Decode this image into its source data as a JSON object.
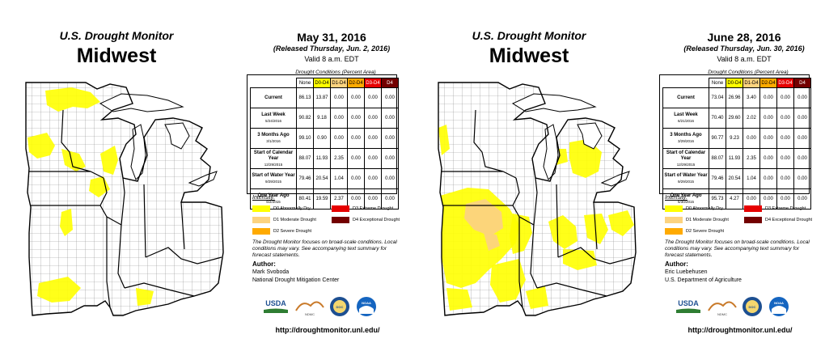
{
  "colors": {
    "d0": "#ffff00",
    "d1": "#fcd37f",
    "d2": "#ffaa00",
    "d3": "#e60000",
    "d4": "#730000",
    "county_line": "#8c8c8c",
    "state_line": "#000000"
  },
  "panels": [
    {
      "header": "U.S. Drought Monitor",
      "region": "Midwest",
      "date": "May 31, 2016",
      "released": "(Released Thursday, Jun. 2, 2016)",
      "valid": "Valid 8 a.m. EDT",
      "conditions_title": "Drought Conditions (Percent Area)",
      "columns": [
        "None",
        "D0-D4",
        "D1-D4",
        "D2-D4",
        "D3-D4",
        "D4"
      ],
      "rows": [
        {
          "label": "Current",
          "sub": "",
          "values": [
            "86.13",
            "13.87",
            "0.00",
            "0.00",
            "0.00",
            "0.00"
          ]
        },
        {
          "label": "Last Week",
          "sub": "5/24/2016",
          "values": [
            "90.82",
            "9.18",
            "0.00",
            "0.00",
            "0.00",
            "0.00"
          ]
        },
        {
          "label": "3 Months Ago",
          "sub": "3/1/2016",
          "values": [
            "99.10",
            "0.90",
            "0.00",
            "0.00",
            "0.00",
            "0.00"
          ]
        },
        {
          "label": "Start of Calendar Year",
          "sub": "12/29/2015",
          "values": [
            "88.07",
            "11.93",
            "2.35",
            "0.00",
            "0.00",
            "0.00"
          ]
        },
        {
          "label": "Start of Water Year",
          "sub": "9/29/2015",
          "values": [
            "79.46",
            "20.54",
            "1.04",
            "0.00",
            "0.00",
            "0.00"
          ]
        },
        {
          "label": "One Year Ago",
          "sub": "6/2/2015",
          "values": [
            "80.41",
            "19.59",
            "2.37",
            "0.00",
            "0.00",
            "0.00"
          ]
        }
      ],
      "intensity_title": "Intensity:",
      "legend": [
        "D0 Abnormally Dry",
        "D1 Moderate Drought",
        "D2 Severe Drought",
        "D3 Extreme Drought",
        "D4 Exceptional Drought"
      ],
      "note": "The Drought Monitor focuses on broad-scale conditions. Local conditions may vary. See accompanying text summary for forecast statements.",
      "author_heading": "Author:",
      "author_name": "Mark Svoboda",
      "author_org": "National Drought Mitigation Center",
      "url": "http://droughtmonitor.unl.edu/",
      "logos": [
        "USDA",
        "NDMC",
        "DOC",
        "NOAA"
      ]
    },
    {
      "header": "U.S. Drought Monitor",
      "region": "Midwest",
      "date": "June 28, 2016",
      "released": "(Released Thursday, Jun. 30, 2016)",
      "valid": "Valid 8 a.m. EDT",
      "conditions_title": "Drought Conditions (Percent Area)",
      "columns": [
        "None",
        "D0-D4",
        "D1-D4",
        "D2-D4",
        "D3-D4",
        "D4"
      ],
      "rows": [
        {
          "label": "Current",
          "sub": "",
          "values": [
            "73.04",
            "26.96",
            "3.40",
            "0.00",
            "0.00",
            "0.00"
          ]
        },
        {
          "label": "Last Week",
          "sub": "6/21/2016",
          "values": [
            "70.40",
            "29.60",
            "2.02",
            "0.00",
            "0.00",
            "0.00"
          ]
        },
        {
          "label": "3 Months Ago",
          "sub": "3/29/2016",
          "values": [
            "90.77",
            "9.23",
            "0.00",
            "0.00",
            "0.00",
            "0.00"
          ]
        },
        {
          "label": "Start of Calendar Year",
          "sub": "12/29/2015",
          "values": [
            "88.07",
            "11.93",
            "2.35",
            "0.00",
            "0.00",
            "0.00"
          ]
        },
        {
          "label": "Start of Water Year",
          "sub": "9/29/2015",
          "values": [
            "79.46",
            "20.54",
            "1.04",
            "0.00",
            "0.00",
            "0.00"
          ]
        },
        {
          "label": "One Year Ago",
          "sub": "6/30/2015",
          "values": [
            "95.73",
            "4.27",
            "0.00",
            "0.00",
            "0.00",
            "0.00"
          ]
        }
      ],
      "intensity_title": "Intensity:",
      "legend": [
        "D0 Abnormally Dry",
        "D1 Moderate Drought",
        "D2 Severe Drought",
        "D3 Extreme Drought",
        "D4 Exceptional Drought"
      ],
      "note": "The Drought Monitor focuses on broad-scale conditions. Local conditions may vary. See accompanying text summary for forecast statements.",
      "author_heading": "Author:",
      "author_name": "Eric Luebehusen",
      "author_org": "U.S. Department of Agriculture",
      "url": "http://droughtmonitor.unl.edu/",
      "logos": [
        "USDA",
        "NDMC",
        "DOC",
        "NOAA"
      ]
    }
  ]
}
